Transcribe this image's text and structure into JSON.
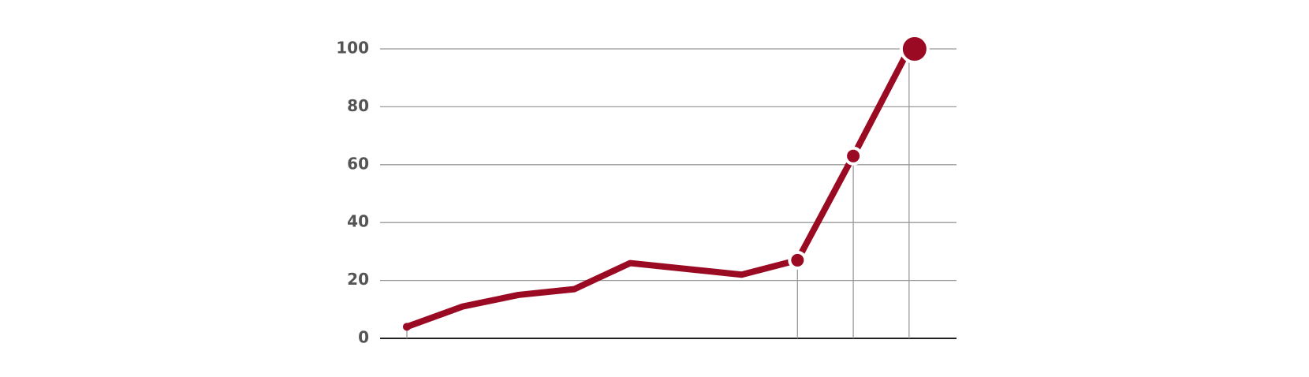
{
  "chart_data": {
    "type": "line",
    "x": [
      0,
      1,
      2,
      3,
      4,
      6,
      7,
      8,
      9
    ],
    "series": [
      {
        "color": "#9b0a23",
        "values": [
          4,
          11,
          15,
          17,
          26,
          22,
          27,
          63,
          100
        ]
      }
    ],
    "highlight": [
      6,
      7,
      8
    ],
    "xlim": [
      -0.48,
      9.85
    ],
    "ylim": [
      0,
      100
    ],
    "yticks": [
      0,
      20,
      40,
      60,
      80,
      100
    ],
    "grid": true
  }
}
